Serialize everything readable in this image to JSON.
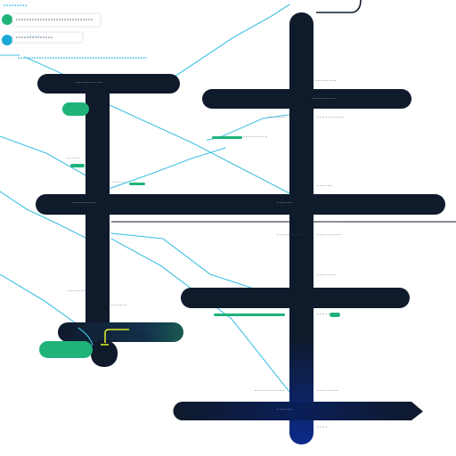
{
  "colors": {
    "background": "#ffffff",
    "track": "#0f1a2b",
    "track_deep": "#0a1f58",
    "connector": "#43c1e4",
    "accent_green": "#1fb37a",
    "accent_lime": "#d6ea2a",
    "label_text": "#3f4a58"
  },
  "tick_labels": [
    {
      "id": "t1",
      "text": "----------"
    },
    {
      "id": "t2",
      "text": "---------"
    },
    {
      "id": "t3",
      "text": "---------"
    },
    {
      "id": "t4",
      "text": "----------"
    },
    {
      "id": "t5",
      "text": "-------"
    },
    {
      "id": "t6",
      "text": "---------"
    },
    {
      "id": "t7",
      "text": "-----"
    },
    {
      "id": "t8",
      "text": "-----"
    },
    {
      "id": "t9",
      "text": "------"
    },
    {
      "id": "t10",
      "text": "---------"
    },
    {
      "id": "t11",
      "text": "------"
    },
    {
      "id": "t12",
      "text": "---------"
    },
    {
      "id": "t13",
      "text": "---------"
    },
    {
      "id": "t14",
      "text": "----------"
    },
    {
      "id": "t15",
      "text": "-------"
    },
    {
      "id": "t16",
      "text": "--------"
    },
    {
      "id": "t17",
      "text": "------"
    },
    {
      "id": "t18",
      "text": "------"
    },
    {
      "id": "t19",
      "text": "-----------"
    },
    {
      "id": "t20",
      "text": "--------"
    },
    {
      "id": "t21",
      "text": "------"
    },
    {
      "id": "t22",
      "text": "----"
    },
    {
      "id": "t23",
      "text": "----------"
    },
    {
      "id": "t24",
      "text": "-----"
    }
  ]
}
